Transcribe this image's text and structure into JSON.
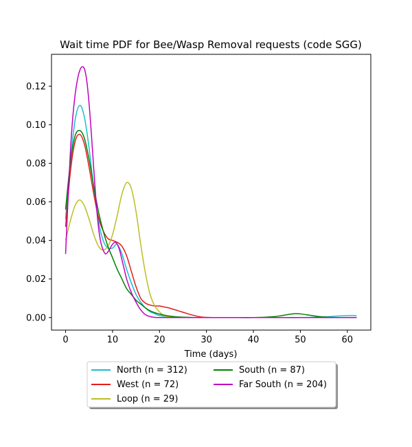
{
  "chart_data": {
    "type": "line",
    "title": "Wait time PDF for Bee/Wasp Removal  requests (code SGG)",
    "xlabel": "Time (days)",
    "ylabel": "",
    "xlim": [
      -3,
      65
    ],
    "ylim": [
      -0.0065,
      0.1365
    ],
    "xticks": [
      0,
      10,
      20,
      30,
      40,
      50,
      60
    ],
    "yticks": [
      0.0,
      0.02,
      0.04,
      0.06,
      0.08,
      0.1,
      0.12
    ],
    "ytick_labels": [
      "0.00",
      "0.02",
      "0.04",
      "0.06",
      "0.08",
      "0.10",
      "0.12"
    ],
    "grid": false,
    "legend": {
      "position": "below-center",
      "columns": 2
    },
    "series": [
      {
        "name": "North (n = 312)",
        "color": "#17becf",
        "x": [
          0,
          1,
          2,
          3,
          4,
          5,
          6,
          7,
          8,
          9,
          10,
          11,
          12,
          13,
          14,
          15,
          16,
          17,
          18,
          19,
          20,
          22,
          24,
          26,
          28,
          30,
          35,
          40,
          45,
          50,
          55,
          58,
          60,
          62
        ],
        "y": [
          0.051,
          0.08,
          0.102,
          0.11,
          0.104,
          0.088,
          0.067,
          0.05,
          0.04,
          0.036,
          0.036,
          0.038,
          0.033,
          0.025,
          0.018,
          0.012,
          0.008,
          0.005,
          0.003,
          0.002,
          0.001,
          0.0005,
          0.0002,
          0.0001,
          0,
          0,
          0,
          0,
          0,
          0,
          0.0003,
          0.0008,
          0.001,
          0.001
        ]
      },
      {
        "name": "West (n = 72)",
        "color": "#e31a1c",
        "x": [
          0,
          1,
          2,
          3,
          4,
          5,
          6,
          7,
          8,
          9,
          10,
          11,
          12,
          13,
          14,
          15,
          16,
          17,
          18,
          19,
          20,
          21,
          22,
          24,
          26,
          28,
          30,
          35,
          40,
          45,
          50,
          55,
          62
        ],
        "y": [
          0.047,
          0.075,
          0.091,
          0.095,
          0.09,
          0.078,
          0.064,
          0.052,
          0.045,
          0.041,
          0.04,
          0.039,
          0.037,
          0.032,
          0.024,
          0.016,
          0.01,
          0.0075,
          0.0065,
          0.006,
          0.006,
          0.0055,
          0.005,
          0.0035,
          0.002,
          0.0007,
          0.0001,
          0,
          0,
          0,
          0,
          0,
          0
        ]
      },
      {
        "name": "Loop (n = 29)",
        "color": "#bcbd22",
        "x": [
          0,
          1,
          2,
          3,
          4,
          5,
          6,
          7,
          8,
          9,
          10,
          11,
          12,
          13,
          14,
          15,
          16,
          17,
          18,
          19,
          20,
          21,
          22,
          24,
          26,
          28,
          30,
          40,
          50,
          62
        ],
        "y": [
          0.04,
          0.05,
          0.058,
          0.061,
          0.058,
          0.051,
          0.043,
          0.037,
          0.035,
          0.037,
          0.043,
          0.053,
          0.064,
          0.07,
          0.067,
          0.055,
          0.038,
          0.023,
          0.012,
          0.006,
          0.003,
          0.001,
          0.0005,
          0.0001,
          0,
          0,
          0,
          0,
          0,
          0
        ]
      },
      {
        "name": "South (n = 87)",
        "color": "#008000",
        "x": [
          0,
          1,
          2,
          3,
          4,
          5,
          6,
          7,
          8,
          9,
          10,
          11,
          12,
          13,
          14,
          15,
          16,
          17,
          18,
          19,
          20,
          22,
          24,
          26,
          28,
          30,
          35,
          40,
          44,
          46,
          48,
          49,
          50,
          52,
          54,
          56,
          58,
          62
        ],
        "y": [
          0.056,
          0.08,
          0.094,
          0.097,
          0.093,
          0.082,
          0.068,
          0.055,
          0.045,
          0.037,
          0.031,
          0.025,
          0.02,
          0.015,
          0.012,
          0.009,
          0.007,
          0.005,
          0.0035,
          0.0025,
          0.0018,
          0.0008,
          0.0003,
          0.0001,
          0,
          0,
          0,
          0,
          0.0004,
          0.001,
          0.0018,
          0.002,
          0.0019,
          0.0012,
          0.0005,
          0.0002,
          0,
          0
        ]
      },
      {
        "name": "Far South (n = 204)",
        "color": "#bf00bf",
        "x": [
          0,
          0.5,
          1,
          1.5,
          2,
          2.5,
          3,
          3.5,
          4,
          4.5,
          5,
          5.5,
          6,
          6.5,
          7,
          7.5,
          8,
          8.5,
          9,
          9.5,
          10,
          10.5,
          11,
          11.5,
          12,
          12.5,
          13,
          14,
          15,
          16,
          17,
          18,
          19,
          20,
          22,
          25,
          30,
          40,
          50,
          62
        ],
        "y": [
          0.033,
          0.06,
          0.085,
          0.103,
          0.115,
          0.123,
          0.128,
          0.13,
          0.129,
          0.123,
          0.111,
          0.095,
          0.077,
          0.06,
          0.047,
          0.039,
          0.035,
          0.033,
          0.034,
          0.036,
          0.038,
          0.039,
          0.038,
          0.035,
          0.03,
          0.025,
          0.02,
          0.013,
          0.008,
          0.004,
          0.0015,
          0.0005,
          0.0001,
          0,
          0,
          0,
          0,
          0,
          0,
          0
        ]
      }
    ]
  }
}
